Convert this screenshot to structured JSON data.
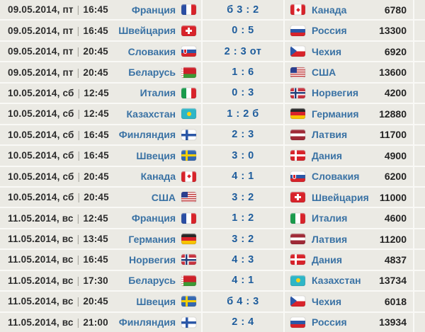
{
  "table": {
    "datetime_separator": "|"
  },
  "matches": [
    {
      "date": "09.05.2014, пт",
      "time": "16:45",
      "home": {
        "name": "Франция",
        "flag": "fr"
      },
      "score": "б 3 : 2",
      "away": {
        "name": "Канада",
        "flag": "ca"
      },
      "attendance": "6780"
    },
    {
      "date": "09.05.2014, пт",
      "time": "16:45",
      "home": {
        "name": "Швейцария",
        "flag": "ch"
      },
      "score": "0 : 5",
      "away": {
        "name": "Россия",
        "flag": "ru"
      },
      "attendance": "13300"
    },
    {
      "date": "09.05.2014, пт",
      "time": "20:45",
      "home": {
        "name": "Словакия",
        "flag": "sk"
      },
      "score": "2 : 3 от",
      "away": {
        "name": "Чехия",
        "flag": "cz"
      },
      "attendance": "6920"
    },
    {
      "date": "09.05.2014, пт",
      "time": "20:45",
      "home": {
        "name": "Беларусь",
        "flag": "by"
      },
      "score": "1 : 6",
      "away": {
        "name": "США",
        "flag": "us"
      },
      "attendance": "13600"
    },
    {
      "date": "10.05.2014, сб",
      "time": "12:45",
      "home": {
        "name": "Италия",
        "flag": "it"
      },
      "score": "0 : 3",
      "away": {
        "name": "Норвегия",
        "flag": "no"
      },
      "attendance": "4200"
    },
    {
      "date": "10.05.2014, сб",
      "time": "12:45",
      "home": {
        "name": "Казахстан",
        "flag": "kz"
      },
      "score": "1 : 2 б",
      "away": {
        "name": "Германия",
        "flag": "de"
      },
      "attendance": "12880"
    },
    {
      "date": "10.05.2014, сб",
      "time": "16:45",
      "home": {
        "name": "Финляндия",
        "flag": "fi"
      },
      "score": "2 : 3",
      "away": {
        "name": "Латвия",
        "flag": "lv"
      },
      "attendance": "11700"
    },
    {
      "date": "10.05.2014, сб",
      "time": "16:45",
      "home": {
        "name": "Швеция",
        "flag": "se"
      },
      "score": "3 : 0",
      "away": {
        "name": "Дания",
        "flag": "dk"
      },
      "attendance": "4900"
    },
    {
      "date": "10.05.2014, сб",
      "time": "20:45",
      "home": {
        "name": "Канада",
        "flag": "ca"
      },
      "score": "4 : 1",
      "away": {
        "name": "Словакия",
        "flag": "sk"
      },
      "attendance": "6200"
    },
    {
      "date": "10.05.2014, сб",
      "time": "20:45",
      "home": {
        "name": "США",
        "flag": "us"
      },
      "score": "3 : 2",
      "away": {
        "name": "Швейцария",
        "flag": "ch"
      },
      "attendance": "11000"
    },
    {
      "date": "11.05.2014, вс",
      "time": "12:45",
      "home": {
        "name": "Франция",
        "flag": "fr"
      },
      "score": "1 : 2",
      "away": {
        "name": "Италия",
        "flag": "it"
      },
      "attendance": "4600"
    },
    {
      "date": "11.05.2014, вс",
      "time": "13:45",
      "home": {
        "name": "Германия",
        "flag": "de"
      },
      "score": "3 : 2",
      "away": {
        "name": "Латвия",
        "flag": "lv"
      },
      "attendance": "11200"
    },
    {
      "date": "11.05.2014, вс",
      "time": "16:45",
      "home": {
        "name": "Норвегия",
        "flag": "no"
      },
      "score": "4 : 3",
      "away": {
        "name": "Дания",
        "flag": "dk"
      },
      "attendance": "4837"
    },
    {
      "date": "11.05.2014, вс",
      "time": "17:30",
      "home": {
        "name": "Беларусь",
        "flag": "by"
      },
      "score": "4 : 1",
      "away": {
        "name": "Казахстан",
        "flag": "kz"
      },
      "attendance": "13734"
    },
    {
      "date": "11.05.2014, вс",
      "time": "20:45",
      "home": {
        "name": "Швеция",
        "flag": "se"
      },
      "score": "б 4 : 3",
      "away": {
        "name": "Чехия",
        "flag": "cz"
      },
      "attendance": "6018"
    },
    {
      "date": "11.05.2014, вс",
      "time": "21:00",
      "home": {
        "name": "Финляндия",
        "flag": "fi"
      },
      "score": "2 : 4",
      "away": {
        "name": "Россия",
        "flag": "ru"
      },
      "attendance": "13934"
    }
  ],
  "colors": {
    "row_background": "#ebeae4",
    "separator": "#f9f9f6",
    "team_link": "#3a72a4",
    "score_text": "#1d5c9c",
    "date_text": "#2b2b2b"
  }
}
